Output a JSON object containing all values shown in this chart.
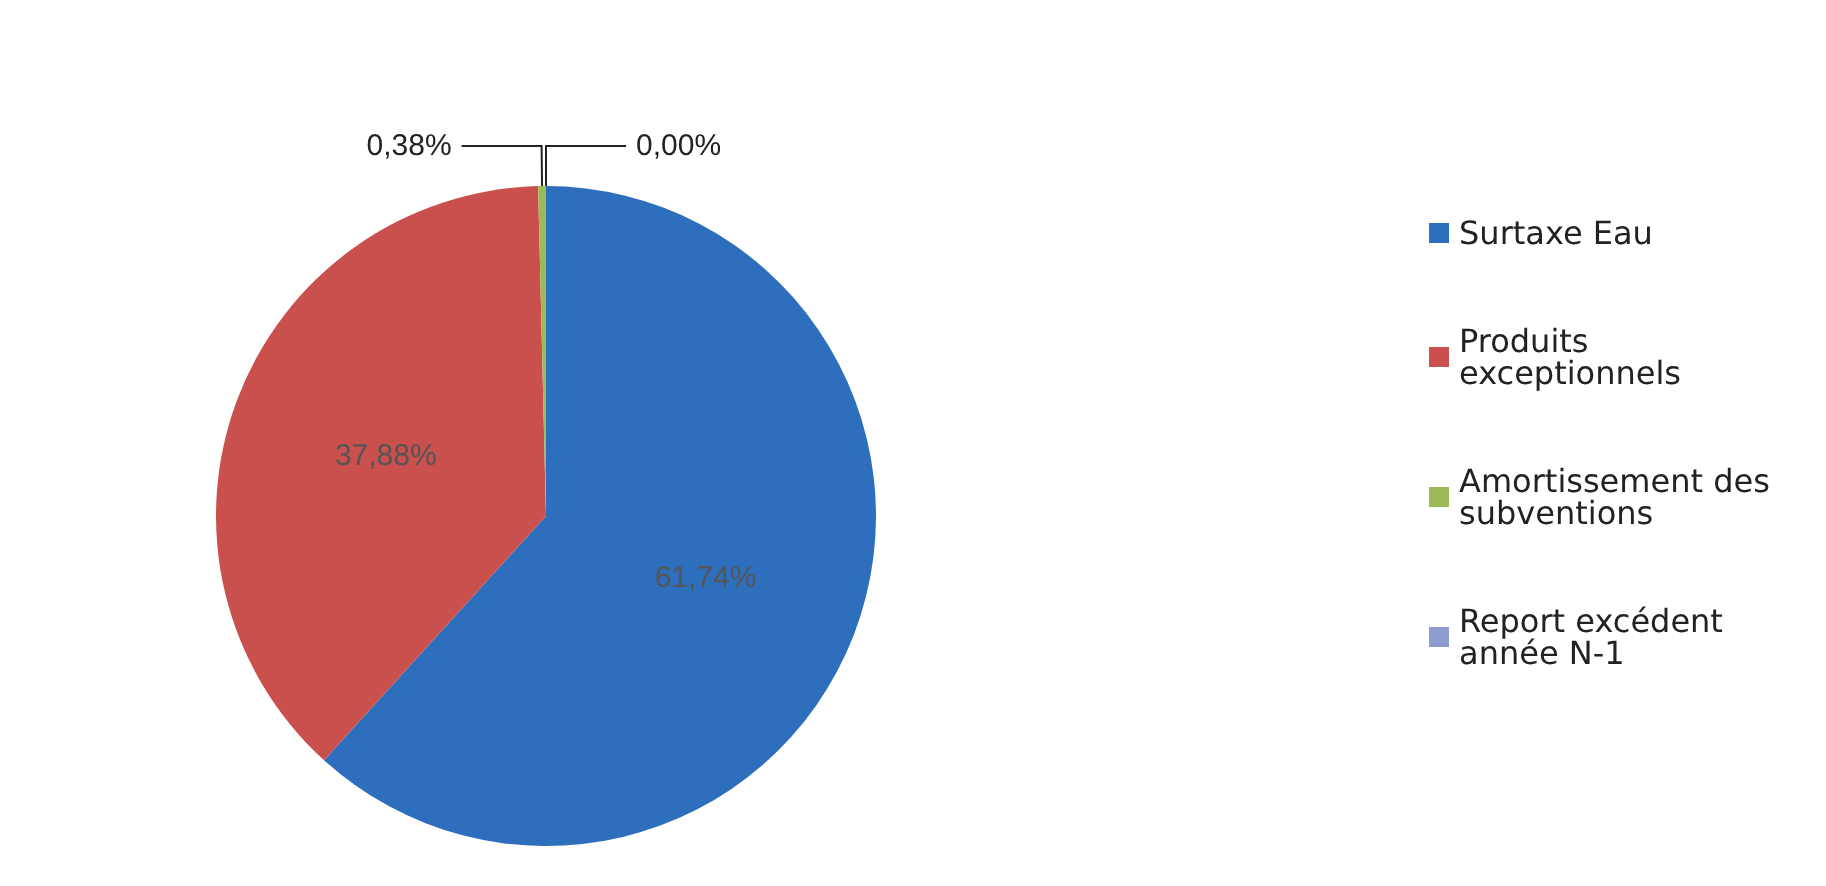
{
  "chart_data": {
    "type": "pie",
    "categories": [
      "Surtaxe Eau",
      "Produits exceptionnels",
      "Amortissement des subventions",
      "Report excédent année N-1"
    ],
    "values": [
      61.74,
      37.88,
      0.38,
      0.0
    ],
    "colors": [
      "#2e6fbd",
      "#c9504d",
      "#9bbb59",
      "#8c9bd0"
    ],
    "value_labels": [
      "61,74%",
      "37,88%",
      "0,38%",
      "0,00%"
    ],
    "legend": "right"
  }
}
